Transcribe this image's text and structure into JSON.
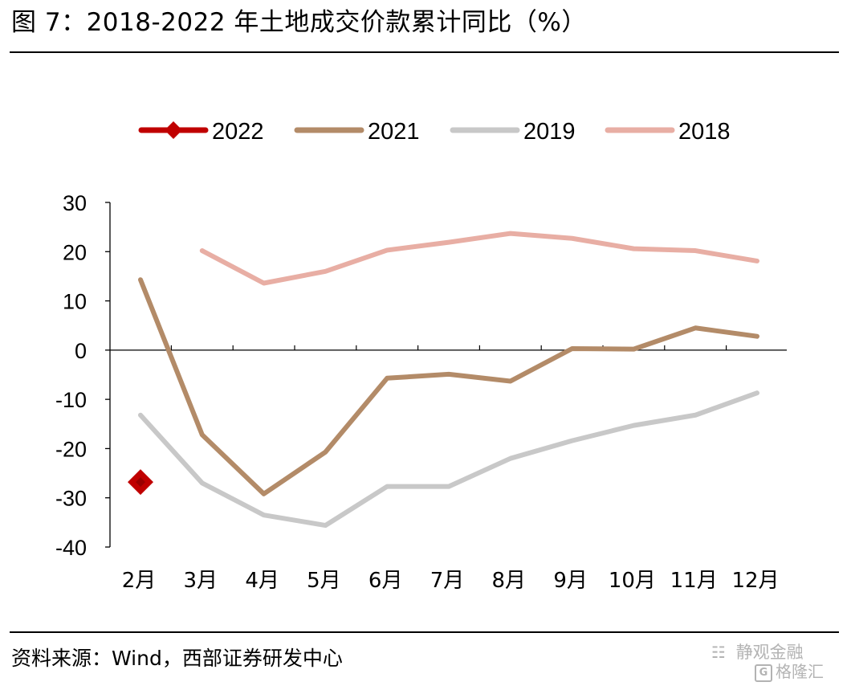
{
  "figure": {
    "title": "图 7：2018-2022 年土地成交价款累计同比（%）",
    "source": "资料来源：Wind，西部证券研发中心",
    "watermark_line1": "静观金融",
    "watermark_line2": "格隆汇",
    "watermark_icon": "chat-bubbles-icon",
    "watermark_logo_letter": "G"
  },
  "chart_data": {
    "type": "line",
    "categories": [
      "2月",
      "3月",
      "4月",
      "5月",
      "6月",
      "7月",
      "8月",
      "9月",
      "10月",
      "11月",
      "12月"
    ],
    "ylim": [
      -40,
      30
    ],
    "yticks": [
      30,
      20,
      10,
      0,
      -10,
      -20,
      -30,
      -40
    ],
    "xlabel": "",
    "ylabel": "",
    "grid": false,
    "legend_position": "top",
    "series": [
      {
        "name": "2022",
        "color": "#c00000",
        "marker": "diamond",
        "values": [
          -26.8,
          null,
          null,
          null,
          null,
          null,
          null,
          null,
          null,
          null,
          null
        ]
      },
      {
        "name": "2021",
        "color": "#b38b68",
        "marker": "none",
        "values": [
          14.3,
          -17.2,
          -29.2,
          -20.7,
          -5.7,
          -4.9,
          -6.3,
          0.3,
          0.2,
          4.5,
          2.8
        ]
      },
      {
        "name": "2019",
        "color": "#c8c8c8",
        "marker": "none",
        "values": [
          -13.2,
          -27.0,
          -33.5,
          -35.6,
          -27.7,
          -27.7,
          -22.0,
          -18.4,
          -15.3,
          -13.2,
          -8.7
        ]
      },
      {
        "name": "2018",
        "color": "#e8aea4",
        "marker": "none",
        "values": [
          null,
          20.2,
          13.6,
          16.0,
          20.3,
          21.9,
          23.7,
          22.7,
          20.6,
          20.2,
          18.1
        ]
      }
    ]
  }
}
